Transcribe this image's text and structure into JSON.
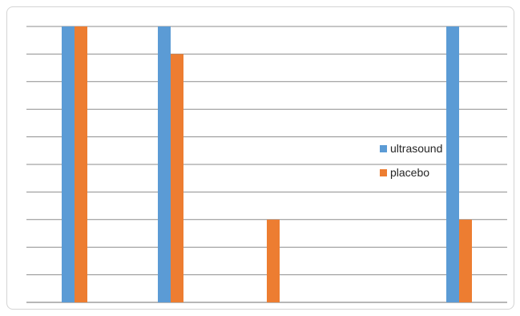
{
  "chart_data": {
    "type": "bar",
    "categories": [
      "",
      "",
      "",
      "",
      ""
    ],
    "series": [
      {
        "name": "ultrasound",
        "color": "#5B9BD5",
        "values": [
          10,
          10,
          0,
          0,
          10
        ]
      },
      {
        "name": "placebo",
        "color": "#ED7D31",
        "values": [
          10,
          9,
          3,
          0,
          3
        ]
      }
    ],
    "ylim": [
      0,
      10
    ],
    "grid": true,
    "legend": "right"
  }
}
